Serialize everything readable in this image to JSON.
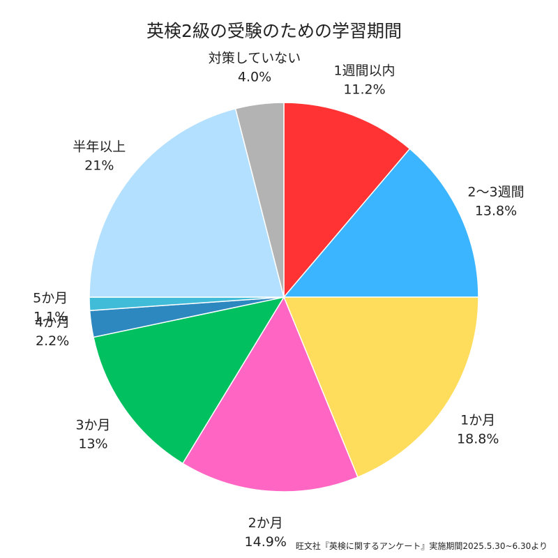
{
  "chart_data": {
    "type": "pie",
    "title": "英検2級の受験のための学習期間",
    "source": "旺文社『英検に関するアンケート』実施期間2025.5.30~6.30より",
    "start": "top",
    "direction": "clockwise",
    "slices": [
      {
        "label": "1週間以内",
        "value": 11.2,
        "display": "11.2%",
        "color": "#ff3333"
      },
      {
        "label": "2〜3週間",
        "value": 13.8,
        "display": "13.8%",
        "color": "#3bb5ff"
      },
      {
        "label": "1か月",
        "value": 18.8,
        "display": "18.8%",
        "color": "#ffdd5c"
      },
      {
        "label": "2か月",
        "value": 14.9,
        "display": "14.9%",
        "color": "#ff66c4"
      },
      {
        "label": "3か月",
        "value": 13,
        "display": "13%",
        "color": "#00c060"
      },
      {
        "label": "4か月",
        "value": 2.2,
        "display": "2.2%",
        "color": "#2e88c0"
      },
      {
        "label": "5か月",
        "value": 1.1,
        "display": "1.1%",
        "color": "#40bcd8"
      },
      {
        "label": "半年以上",
        "value": 21,
        "display": "21%",
        "color": "#b3e0ff"
      },
      {
        "label": "対策していない",
        "value": 4.0,
        "display": "4.0%",
        "color": "#b3b3b3"
      }
    ]
  }
}
